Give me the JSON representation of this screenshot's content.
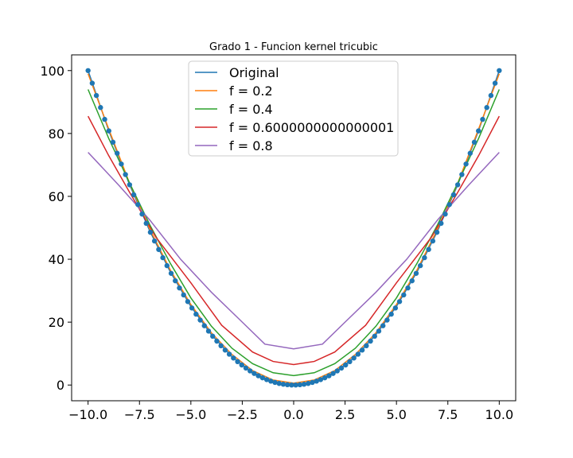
{
  "chart_data": {
    "type": "line",
    "title": "Grado 1 - Funcion kernel tricubic",
    "xlabel": "",
    "ylabel": "",
    "xlim": [
      -10.8,
      10.8
    ],
    "ylim": [
      -5,
      105
    ],
    "x_ticks": [
      -10.0,
      -7.5,
      -5.0,
      -2.5,
      0.0,
      2.5,
      5.0,
      7.5,
      10.0
    ],
    "x_tick_labels": [
      "−10.0",
      "−7.5",
      "−5.0",
      "−2.5",
      "0.0",
      "2.5",
      "5.0",
      "7.5",
      "10.0"
    ],
    "y_ticks": [
      0,
      20,
      40,
      60,
      80,
      100
    ],
    "y_tick_labels": [
      "0",
      "20",
      "40",
      "60",
      "80",
      "100"
    ],
    "grid": false,
    "legend_position": "top-center",
    "scatter": {
      "name": "",
      "color": "#1f77b4",
      "x_range": [
        -10,
        10
      ],
      "n_points": 100,
      "function": "x^2"
    },
    "series": [
      {
        "name": "Original",
        "color": "#1f77b4",
        "x": [
          -10,
          -9,
          -8,
          -7,
          -6,
          -5,
          -4,
          -3,
          -2,
          -1,
          0,
          1,
          2,
          3,
          4,
          5,
          6,
          7,
          8,
          9,
          10
        ],
        "values": [
          100,
          81,
          64,
          49,
          36,
          25,
          16,
          9,
          4,
          1,
          0,
          1,
          4,
          9,
          16,
          25,
          36,
          49,
          64,
          81,
          100
        ]
      },
      {
        "name": "f = 0.2",
        "color": "#ff7f0e",
        "x": [
          -10,
          -9,
          -8,
          -7,
          -6,
          -5,
          -4,
          -3,
          -2,
          -1,
          0,
          1,
          2,
          3,
          4,
          5,
          6,
          7,
          8,
          9,
          10
        ],
        "values": [
          99,
          81.5,
          64.5,
          49.6,
          36.6,
          25.6,
          16.6,
          9.7,
          4.6,
          1.6,
          0.6,
          1.6,
          4.6,
          9.7,
          16.6,
          25.6,
          36.6,
          49.6,
          64.5,
          81.5,
          99
        ]
      },
      {
        "name": "f = 0.4",
        "color": "#2ca02c",
        "x": [
          -10,
          -9,
          -8,
          -7,
          -6,
          -5,
          -4,
          -3,
          -2,
          -1,
          0,
          1,
          2,
          3,
          4,
          5,
          6,
          7,
          8,
          9,
          10
        ],
        "values": [
          94,
          78.5,
          64.5,
          51,
          38.7,
          27.7,
          18.7,
          11.7,
          6.8,
          3.9,
          3,
          3.9,
          6.8,
          11.7,
          18.7,
          27.7,
          38.7,
          51,
          64.5,
          78.5,
          94
        ]
      },
      {
        "name": "f = 0.6000000000000001",
        "color": "#d62728",
        "x": [
          -10,
          -9,
          -8,
          -6.7,
          -5,
          -3.5,
          -2,
          -1,
          0,
          1,
          2,
          3.5,
          5,
          6.7,
          8,
          9,
          10
        ],
        "values": [
          85.5,
          73,
          61.5,
          47,
          32.5,
          19,
          10.5,
          7.5,
          6.5,
          7.5,
          10.5,
          19,
          32.5,
          47,
          61.5,
          73,
          85.5
        ]
      },
      {
        "name": "f = 0.8",
        "color": "#9467bd",
        "x": [
          -10,
          -8.5,
          -7,
          -5.5,
          -4,
          -2.5,
          -1.4,
          0,
          1.4,
          2.5,
          4,
          5.5,
          7,
          8.5,
          10
        ],
        "values": [
          74,
          63.5,
          52.5,
          40,
          29.5,
          20,
          13,
          11.5,
          13,
          20,
          29.5,
          40,
          52.5,
          63.5,
          74
        ]
      }
    ]
  }
}
